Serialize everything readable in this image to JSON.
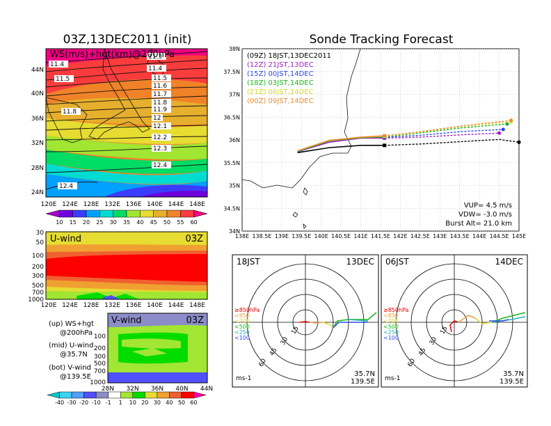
{
  "left_panel": {
    "title": "03Z,13DEC2011 (init)",
    "map_label": "WS(m/s)+hgt(km)@200hPa",
    "lat_ticks": [
      "44N",
      "40N",
      "36N",
      "32N",
      "28N",
      "24N"
    ],
    "lon_ticks": [
      "120E",
      "124E",
      "128E",
      "132E",
      "136E",
      "140E",
      "144E",
      "148E"
    ],
    "contours": [
      "11.3",
      "11.4",
      "11.5",
      "11.6",
      "11.7",
      "11.8",
      "11.9",
      "12",
      "12.1",
      "12.2",
      "12.3",
      "12.4"
    ],
    "contour_left_labels": [
      "11.4",
      "11.5",
      "11.8",
      "12.4"
    ],
    "ws_colorbar": [
      "10",
      "15",
      "20",
      "25",
      "30",
      "35",
      "40",
      "45",
      "50",
      "55",
      "60"
    ],
    "uwind_label": "U-wind",
    "uwind_time": "03Z",
    "p_ticks": [
      "30",
      "50",
      "100",
      "200",
      "300",
      "500",
      "700",
      "1000"
    ],
    "vwind_label": "V-wind",
    "vwind_time": "03Z",
    "vwind_p_ticks": [
      "100",
      "200",
      "300",
      "500",
      "700",
      "1000"
    ],
    "vwind_lat_ticks": [
      "28N",
      "32N",
      "36N",
      "40N",
      "44N"
    ],
    "legend_lines": [
      "(up) WS+hgt",
      "@200hPa",
      "(mid) U-wind",
      "@35.7N",
      "(bot) V-wind",
      "@139.5E"
    ],
    "vwind_colorbar": [
      "-40",
      "-30",
      "-20",
      "-10",
      "-1",
      "1",
      "10",
      "20",
      "30",
      "40",
      "50",
      "60"
    ]
  },
  "tracking": {
    "title": "Sonde Tracking Forecast",
    "legend": [
      {
        "text": "(09Z) 18JST,13DEC2011",
        "color": "#000000"
      },
      {
        "text": "(12Z) 21JST,13DEC",
        "color": "#a020c0"
      },
      {
        "text": "(15Z) 00JST,14DEC",
        "color": "#2a4ae6"
      },
      {
        "text": "(18Z) 03JST,14DEC",
        "color": "#18b818"
      },
      {
        "text": "(21Z) 06JST,14DEC",
        "color": "#d8d830"
      },
      {
        "text": "(00Z) 09JST,14DEC",
        "color": "#f08c30"
      }
    ],
    "lat_ticks": [
      "38N",
      "37.5N",
      "37N",
      "36.5N",
      "36N",
      "35.5N",
      "35N",
      "34.5N",
      "34N"
    ],
    "lon_ticks": [
      "138E",
      "138.5E",
      "139E",
      "139.5E",
      "140E",
      "140.5E",
      "141E",
      "141.5E",
      "142E",
      "142.5E",
      "143E",
      "143.5E",
      "144E",
      "144.5E",
      "145E"
    ],
    "vup": "VUP= 4.5 m/s",
    "vdw": "VDW= -3.0 m/s",
    "burst": "Burst Alt= 21.0 km"
  },
  "polar1": {
    "time": "18JST",
    "date": "13DEC",
    "rings": [
      "15",
      "30",
      "45",
      "60"
    ],
    "legend": [
      {
        "text": "≥850hPa",
        "color": "#e00000"
      },
      {
        "text": "<850",
        "color": "#f0a040"
      },
      {
        "text": "<700",
        "color": "#d8d830"
      },
      {
        "text": "<500",
        "color": "#18b818"
      },
      {
        "text": "<250",
        "color": "#20b0b0"
      },
      {
        "text": "<100",
        "color": "#2a4ae6"
      }
    ],
    "loc_lat": "35.7N",
    "loc_lon": "139.5E",
    "unit": "ms-1"
  },
  "polar2": {
    "time": "06JST",
    "date": "14DEC",
    "rings": [
      "15",
      "30",
      "45",
      "60"
    ],
    "legend": [
      {
        "text": "≥850hPa",
        "color": "#e00000"
      },
      {
        "text": "<850",
        "color": "#f0a040"
      },
      {
        "text": "<700",
        "color": "#d8d830"
      },
      {
        "text": "<500",
        "color": "#18b818"
      },
      {
        "text": "<250",
        "color": "#20b0b0"
      },
      {
        "text": "<100",
        "color": "#2a4ae6"
      }
    ],
    "loc_lat": "35.7N",
    "loc_lon": "139.5E",
    "unit": "ms-1"
  },
  "colors": {
    "ws": [
      "#a000c8",
      "#6e00dc",
      "#3c3cff",
      "#00a0ff",
      "#00dcd2",
      "#00dc64",
      "#a0e632",
      "#e6dc32",
      "#e6af2d",
      "#f08228",
      "#fa3c3c",
      "#f00082"
    ],
    "vwind": [
      "#00c8c8",
      "#3cd2f0",
      "#50a0ff",
      "#5050ff",
      "#8c8cc8",
      "#ffffff",
      "#a0e632",
      "#00dc00",
      "#e6dc32",
      "#f0a030",
      "#f06030",
      "#ff0000",
      "#ff00a0"
    ]
  },
  "chart_data": [
    {
      "type": "line",
      "title": "Sonde Tracking Forecast",
      "xlabel": "",
      "ylabel": "",
      "xlim": [
        138,
        145
      ],
      "ylim": [
        34,
        38
      ],
      "series": [
        {
          "name": "(09Z) 18JST,13DEC2011",
          "x": [
            139.4,
            140.2,
            141.0,
            141.6,
            142.5,
            143.5,
            144.5,
            145.0
          ],
          "y": [
            35.72,
            35.83,
            35.88,
            35.88,
            35.91,
            35.96,
            36.01,
            35.95
          ]
        },
        {
          "name": "(12Z) 21JST,13DEC",
          "x": [
            139.4,
            140.2,
            141.0,
            141.6,
            142.5,
            143.5,
            144.5
          ],
          "y": [
            35.74,
            35.95,
            36.04,
            36.04,
            36.06,
            36.11,
            36.15
          ]
        },
        {
          "name": "(15Z) 00JST,14DEC",
          "x": [
            139.4,
            140.2,
            141.0,
            141.6,
            142.5,
            143.5,
            144.6
          ],
          "y": [
            35.74,
            35.98,
            36.06,
            36.06,
            36.1,
            36.18,
            36.23
          ]
        },
        {
          "name": "(18Z) 03JST,14DEC",
          "x": [
            139.4,
            140.2,
            141.0,
            141.6,
            142.5,
            143.5,
            144.7
          ],
          "y": [
            35.75,
            35.98,
            36.05,
            36.07,
            36.15,
            36.26,
            36.35
          ]
        },
        {
          "name": "(21Z) 06JST,14DEC",
          "x": [
            139.4,
            140.2,
            141.0,
            141.6,
            142.5,
            143.5,
            144.8
          ],
          "y": [
            35.76,
            35.99,
            36.06,
            36.08,
            36.17,
            36.29,
            36.4
          ]
        },
        {
          "name": "(00Z) 09JST,14DEC",
          "x": [
            139.4,
            140.2,
            141.0,
            141.6,
            142.5,
            143.5,
            144.8
          ],
          "y": [
            35.76,
            35.99,
            36.06,
            36.09,
            36.18,
            36.3,
            36.43
          ]
        }
      ]
    }
  ]
}
